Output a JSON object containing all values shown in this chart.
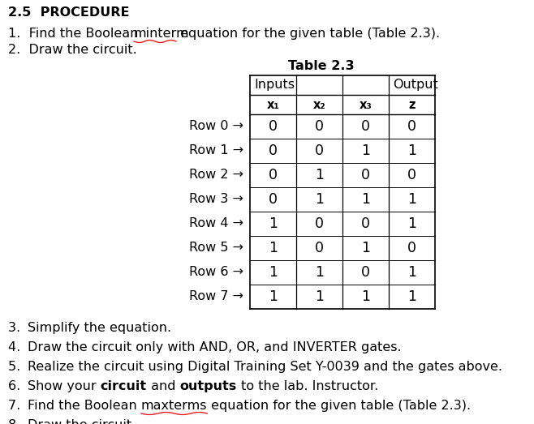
{
  "title": "2.5  PROCEDURE",
  "bg_color": "#ffffff",
  "font_size": 11.5,
  "table_data": [
    [
      0,
      0,
      0,
      0
    ],
    [
      0,
      0,
      1,
      1
    ],
    [
      0,
      1,
      0,
      0
    ],
    [
      0,
      1,
      1,
      1
    ],
    [
      1,
      0,
      0,
      1
    ],
    [
      1,
      0,
      1,
      0
    ],
    [
      1,
      1,
      0,
      1
    ],
    [
      1,
      1,
      1,
      1
    ]
  ],
  "row_labels": [
    "Row 0",
    "Row 1",
    "Row 2",
    "Row 3",
    "Row 4",
    "Row 5",
    "Row 6",
    "Row 7"
  ],
  "table_col_labels": [
    "x₁",
    "x₂",
    "x₃",
    "z"
  ],
  "table_title": "Table 2.3",
  "text_color": "#2b2b8c",
  "line_color": "#000000"
}
